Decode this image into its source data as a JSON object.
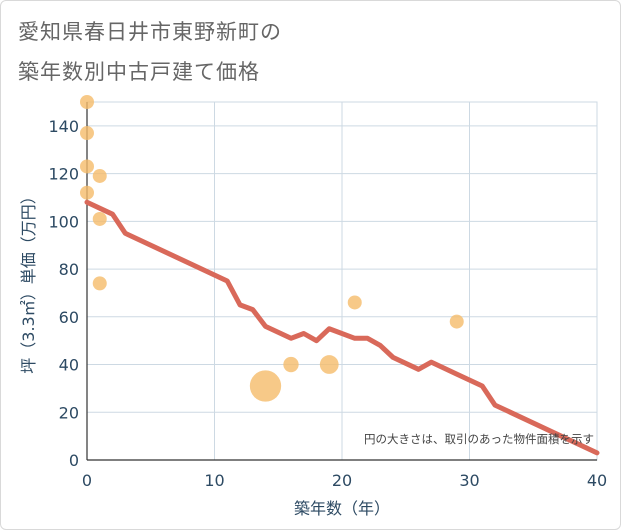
{
  "title_line1": "愛知県春日井市東野新町の",
  "title_line2": "築年数別中古戸建て価格",
  "chart_data": {
    "type": "scatter",
    "xlabel": "築年数（年）",
    "ylabel": "坪（3.3㎡）単価（万円）",
    "xlim": [
      0,
      40
    ],
    "ylim": [
      0,
      150
    ],
    "xticks": [
      0,
      10,
      20,
      30,
      40
    ],
    "yticks": [
      0,
      20,
      40,
      60,
      80,
      100,
      120,
      140
    ],
    "grid": true,
    "note": "円の大きさは、取引のあった物件面積を示す",
    "colors": {
      "bubble": "#f5bb6a",
      "line": "#d9695a",
      "axis_text": "#2d4a63",
      "grid": "#cdd9e3"
    },
    "points": [
      {
        "x": 0,
        "y": 150,
        "size": 1
      },
      {
        "x": 0,
        "y": 137,
        "size": 1
      },
      {
        "x": 0,
        "y": 123,
        "size": 1
      },
      {
        "x": 0,
        "y": 112,
        "size": 1
      },
      {
        "x": 1,
        "y": 119,
        "size": 1
      },
      {
        "x": 1,
        "y": 101,
        "size": 1
      },
      {
        "x": 1,
        "y": 74,
        "size": 1
      },
      {
        "x": 14,
        "y": 31,
        "size": 5
      },
      {
        "x": 16,
        "y": 40,
        "size": 1.2
      },
      {
        "x": 19,
        "y": 40,
        "size": 1.8
      },
      {
        "x": 21,
        "y": 66,
        "size": 1
      },
      {
        "x": 29,
        "y": 58,
        "size": 1
      }
    ],
    "trend": {
      "x": [
        0,
        2,
        3,
        11,
        12,
        13,
        14,
        16,
        17,
        18,
        19,
        21,
        22,
        23,
        24,
        26,
        27,
        29,
        31,
        32,
        40
      ],
      "y": [
        108,
        103,
        95,
        75,
        65,
        63,
        56,
        51,
        53,
        50,
        55,
        51,
        51,
        48,
        43,
        38,
        41,
        36,
        31,
        23,
        3
      ]
    }
  }
}
